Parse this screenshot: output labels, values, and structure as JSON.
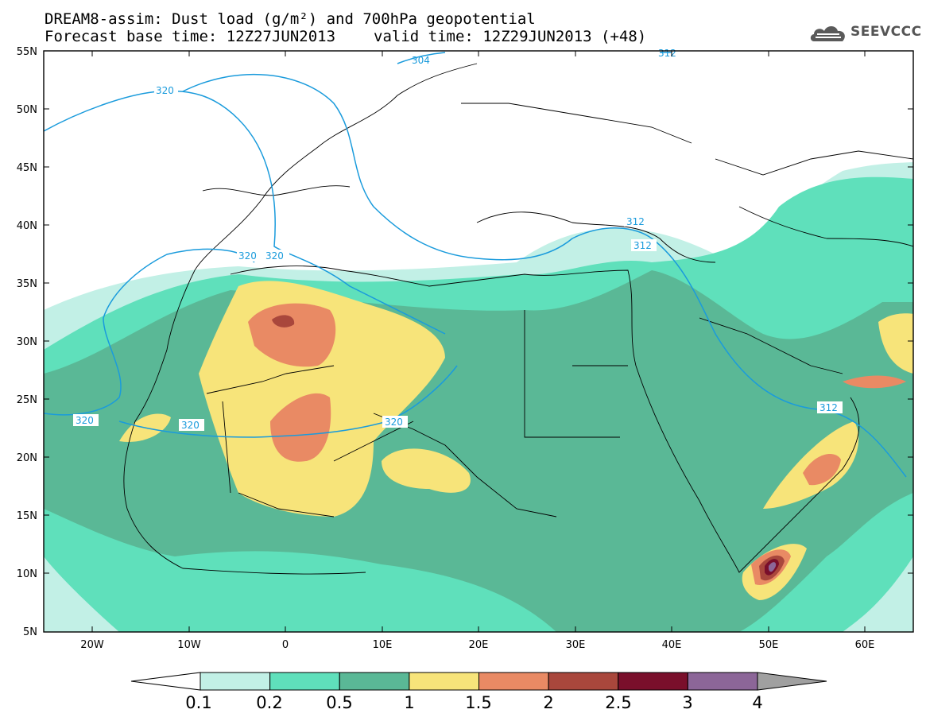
{
  "header": {
    "line1": "DREAM8-assim: Dust load (g/m²) and 700hPa geopotential",
    "base_time": "Forecast base time: 12Z27JUN2013",
    "valid_time": "valid time: 12Z29JUN2013 (+48)"
  },
  "logo": {
    "text": "SEEVCCC",
    "icon": "cloud-icon"
  },
  "map": {
    "lat_labels": [
      "55N",
      "50N",
      "45N",
      "40N",
      "35N",
      "30N",
      "25N",
      "20N",
      "15N",
      "10N",
      "5N"
    ],
    "lon_labels": [
      "20W",
      "10W",
      "0",
      "10E",
      "20E",
      "30E",
      "40E",
      "50E",
      "60E"
    ],
    "contour_labels": [
      "320",
      "320",
      "320",
      "320",
      "320",
      "320",
      "312",
      "312",
      "312",
      "304",
      "312"
    ]
  },
  "colorbar": {
    "labels": [
      "0.1",
      "0.2",
      "0.5",
      "1",
      "1.5",
      "2",
      "2.5",
      "3",
      "4"
    ],
    "colors": [
      "#c2f0e6",
      "#5fe0bb",
      "#5ab896",
      "#f7e47a",
      "#e98a64",
      "#a9473c",
      "#7a0f2b",
      "#8c6698",
      "#a0a0a0"
    ],
    "under_color": "#ffffff"
  },
  "colors": {
    "contour": "#1a9bdc",
    "dust_light": "#c2f0e6",
    "dust_mid": "#5fe0bb",
    "dust_dark": "#5ab896",
    "dust_yellow": "#f7e47a",
    "dust_orange": "#e98a64",
    "dust_brown": "#a9473c",
    "dust_maroon": "#7a0f2b",
    "dust_purple": "#8c6698"
  }
}
